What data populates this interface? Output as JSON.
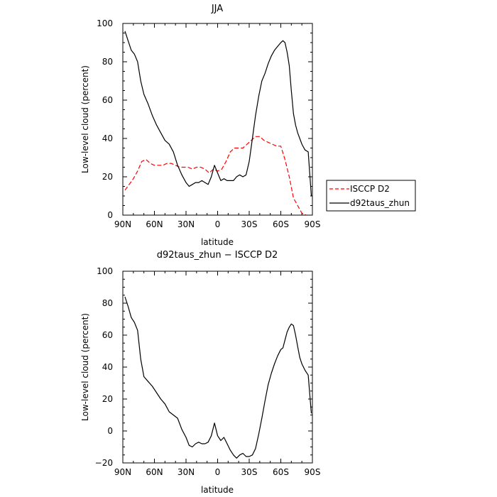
{
  "chart_data": [
    {
      "type": "line",
      "title": "JJA",
      "xlabel": "latitude",
      "ylabel": "Low-level cloud (percent)",
      "xlim": [
        -90,
        90
      ],
      "ylim": [
        0,
        100
      ],
      "xticks": [
        -90,
        -60,
        -30,
        0,
        30,
        60,
        90
      ],
      "xtick_labels": [
        "90N",
        "60N",
        "30N",
        "0",
        "30S",
        "60S",
        "90S"
      ],
      "yticks": [
        0,
        20,
        40,
        60,
        80,
        100
      ],
      "ytick_labels": [
        "0",
        "20",
        "40",
        "60",
        "80",
        "100"
      ],
      "legend_position": "right",
      "series": [
        {
          "name": "ISCCP D2",
          "color": "#ff0000",
          "dash": "dashed",
          "x": [
            -88,
            -84,
            -80,
            -76,
            -72,
            -68,
            -64,
            -60,
            -56,
            -52,
            -48,
            -44,
            -40,
            -36,
            -32,
            -28,
            -24,
            -20,
            -16,
            -12,
            -8,
            -4,
            0,
            4,
            8,
            12,
            16,
            20,
            24,
            28,
            32,
            36,
            40,
            44,
            48,
            52,
            56,
            60,
            64,
            68,
            72,
            76,
            80,
            84
          ],
          "y": [
            13,
            16,
            19,
            23,
            28,
            29,
            27,
            26,
            26,
            26,
            27,
            27,
            26,
            25,
            25,
            25,
            24,
            25,
            25,
            24,
            22,
            24,
            23,
            24,
            28,
            33,
            35,
            35,
            35,
            37,
            39,
            41,
            41,
            39,
            38,
            37,
            36,
            36,
            29,
            20,
            9,
            5,
            1,
            0
          ]
        },
        {
          "name": "d92taus_zhun",
          "color": "#000000",
          "dash": "solid",
          "x": [
            -88,
            -85,
            -82,
            -79,
            -76,
            -73,
            -70,
            -66,
            -62,
            -58,
            -54,
            -50,
            -46,
            -42,
            -38,
            -34,
            -30,
            -27,
            -24,
            -21,
            -18,
            -15,
            -12,
            -9,
            -6,
            -3,
            0,
            3,
            6,
            9,
            12,
            15,
            18,
            21,
            24,
            27,
            30,
            33,
            36,
            39,
            42,
            45,
            48,
            51,
            54,
            57,
            60,
            62,
            64,
            66,
            68,
            70,
            72,
            74,
            76,
            78,
            80,
            83,
            86,
            89
          ],
          "y": [
            96,
            91,
            86,
            84,
            80,
            70,
            63,
            58,
            52,
            47,
            43,
            39,
            37,
            33,
            26,
            21,
            17,
            15,
            16,
            17,
            17,
            18,
            17,
            16,
            20,
            26,
            22,
            18,
            19,
            18,
            18,
            18,
            20,
            21,
            20,
            21,
            28,
            40,
            52,
            62,
            70,
            74,
            79,
            83,
            86,
            88,
            90,
            91,
            90,
            85,
            78,
            65,
            53,
            47,
            43,
            40,
            37,
            34,
            33,
            10
          ]
        }
      ]
    },
    {
      "type": "line",
      "title": "d92taus_zhun − ISCCP D2",
      "xlabel": "latitude",
      "ylabel": "Low-level cloud (percent)",
      "xlim": [
        -90,
        90
      ],
      "ylim": [
        -20,
        100
      ],
      "xticks": [
        -90,
        -60,
        -30,
        0,
        30,
        60,
        90
      ],
      "xtick_labels": [
        "90N",
        "60N",
        "30N",
        "0",
        "30S",
        "60S",
        "90S"
      ],
      "yticks": [
        -20,
        0,
        20,
        40,
        60,
        80,
        100
      ],
      "ytick_labels": [
        "−20",
        "0",
        "20",
        "40",
        "60",
        "80",
        "100"
      ],
      "series": [
        {
          "color": "#000000",
          "dash": "solid",
          "x": [
            -88,
            -85,
            -82,
            -79,
            -76,
            -73,
            -70,
            -66,
            -62,
            -58,
            -54,
            -50,
            -46,
            -42,
            -38,
            -34,
            -30,
            -27,
            -24,
            -21,
            -18,
            -15,
            -12,
            -9,
            -6,
            -3,
            0,
            3,
            6,
            9,
            12,
            15,
            18,
            21,
            24,
            27,
            30,
            33,
            36,
            39,
            42,
            45,
            48,
            51,
            54,
            57,
            60,
            62,
            64,
            66,
            68,
            70,
            72,
            74,
            76,
            78,
            80,
            83,
            86,
            89
          ],
          "y": [
            84,
            78,
            71,
            68,
            63,
            45,
            34,
            31,
            28,
            24,
            20,
            17,
            12,
            10,
            8,
            1,
            -4,
            -9,
            -10,
            -8,
            -7,
            -8,
            -8,
            -7,
            -3,
            5,
            -3,
            -6,
            -4,
            -8,
            -12,
            -15,
            -17,
            -15,
            -14,
            -16,
            -16,
            -15,
            -11,
            -2,
            8,
            19,
            29,
            36,
            42,
            47,
            51,
            52,
            57,
            62,
            65,
            67,
            66,
            60,
            53,
            46,
            42,
            38,
            35,
            11
          ]
        }
      ]
    }
  ]
}
